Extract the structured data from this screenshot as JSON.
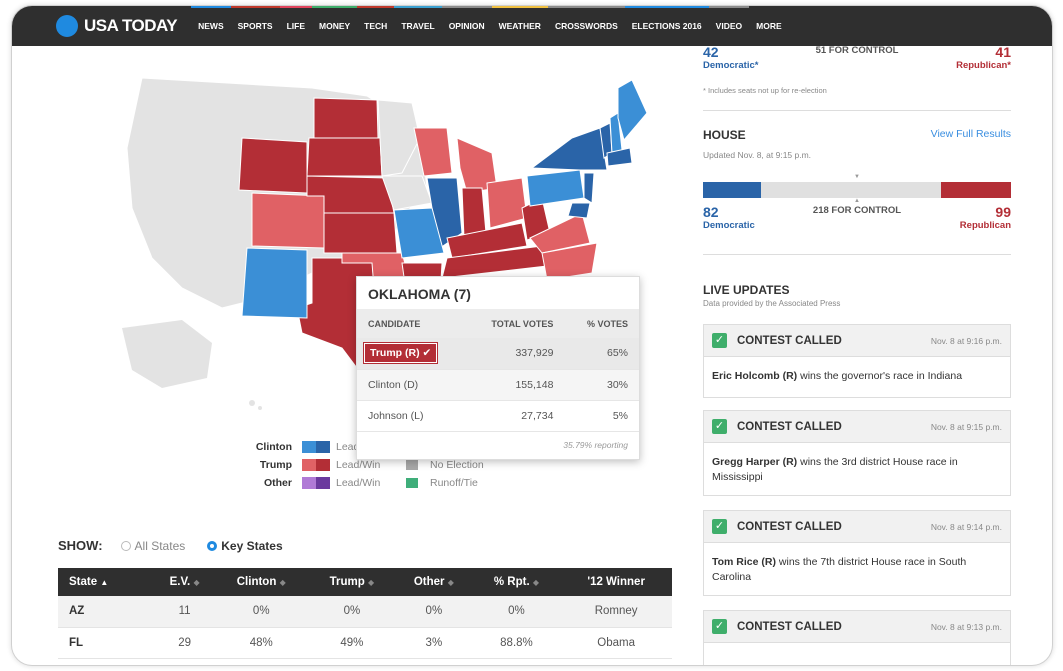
{
  "brand": {
    "logo_text": "USA TODAY"
  },
  "nav": [
    {
      "label": "NEWS",
      "color": "#1f8ae0"
    },
    {
      "label": "SPORTS",
      "color": "#c0392b"
    },
    {
      "label": "LIFE",
      "color": "#e0435c"
    },
    {
      "label": "MONEY",
      "color": "#3fae6b"
    },
    {
      "label": "TECH",
      "color": "#c0392b"
    },
    {
      "label": "TRAVEL",
      "color": "#3aa0d0"
    },
    {
      "label": "OPINION",
      "color": "#8a8a8a"
    },
    {
      "label": "WEATHER",
      "color": "#f0c040"
    },
    {
      "label": "CROSSWORDS",
      "color": "#8a8a8a"
    },
    {
      "label": "ELECTIONS 2016",
      "color": "#1f8ae0"
    },
    {
      "label": "VIDEO",
      "color": "#8a8a8a"
    },
    {
      "label": "MORE",
      "color": ""
    }
  ],
  "colors": {
    "dem_light": "#3b8fd6",
    "dem_dark": "#2a64a8",
    "rep_light": "#e06165",
    "rep_dark": "#b32e36",
    "other_light": "#b07ad6",
    "other_dark": "#6b3a9e",
    "no_election": "#a8a8a8",
    "runoff": "#3fae7a",
    "undecided": "#e3e3e3"
  },
  "legend": {
    "rows": [
      {
        "name": "Clinton",
        "text": "Lead/Win",
        "extra": ""
      },
      {
        "name": "Trump",
        "text": "Lead/Win",
        "extra": "No Election"
      },
      {
        "name": "Other",
        "text": "Lead/Win",
        "extra": "Runoff/Tie"
      }
    ]
  },
  "popup": {
    "title": "OKLAHOMA (7)",
    "headers": {
      "candidate": "CANDIDATE",
      "total": "TOTAL VOTES",
      "pct": "% VOTES"
    },
    "rows": [
      {
        "candidate": "Trump (R)",
        "total": "337,929",
        "pct": "65%",
        "winner": true
      },
      {
        "candidate": "Clinton (D)",
        "total": "155,148",
        "pct": "30%",
        "winner": false
      },
      {
        "candidate": "Johnson (L)",
        "total": "27,734",
        "pct": "5%",
        "winner": false
      }
    ],
    "check_glyph": "✔",
    "reporting": "35.79% reporting"
  },
  "show": {
    "label": "SHOW:",
    "options": [
      {
        "label": "All States",
        "selected": false
      },
      {
        "label": "Key States",
        "selected": true
      }
    ]
  },
  "states_table": {
    "headers": [
      "State",
      "E.V.",
      "Clinton",
      "Trump",
      "Other",
      "% Rpt.",
      "'12 Winner"
    ],
    "sort_active": "▲",
    "sort_idle": "◆",
    "rows": [
      [
        "AZ",
        "11",
        "0%",
        "0%",
        "0%",
        "0%",
        "Romney"
      ],
      [
        "FL",
        "29",
        "48%",
        "49%",
        "3%",
        "88.8%",
        "Obama"
      ]
    ]
  },
  "senate": {
    "dem_count": "42",
    "dem_label": "Democratic*",
    "control": "51 FOR CONTROL",
    "rep_count": "41",
    "rep_label": "Republican*",
    "footnote": "* Includes seats not up for re-election"
  },
  "house": {
    "title": "HOUSE",
    "link": "View Full Results",
    "updated": "Updated Nov. 8, at 9:15 p.m.",
    "dem_count": "82",
    "dem_label": "Democratic",
    "control": "218 FOR CONTROL",
    "rep_count": "99",
    "rep_label": "Republican",
    "dem_share": 0.188,
    "rep_share": 0.227,
    "marker_down": "▼",
    "marker_up": "▲"
  },
  "live": {
    "title": "LIVE UPDATES",
    "subtitle": "Data provided by the Associated Press",
    "cards": [
      {
        "label": "CONTEST CALLED",
        "time": "Nov. 8 at 9:16 p.m.",
        "winner": "Eric Holcomb (R)",
        "text": " wins the governor's race in Indiana"
      },
      {
        "label": "CONTEST CALLED",
        "time": "Nov. 8 at 9:15 p.m.",
        "winner": "Gregg Harper (R)",
        "text": " wins the 3rd district House race in Mississippi"
      },
      {
        "label": "CONTEST CALLED",
        "time": "Nov. 8 at 9:14 p.m.",
        "winner": "Tom Rice (R)",
        "text": " wins the 7th district House race in South Carolina"
      },
      {
        "label": "CONTEST CALLED",
        "time": "Nov. 8 at 9:13 p.m.",
        "winner": "",
        "text": ""
      }
    ],
    "check_glyph": "✓"
  }
}
